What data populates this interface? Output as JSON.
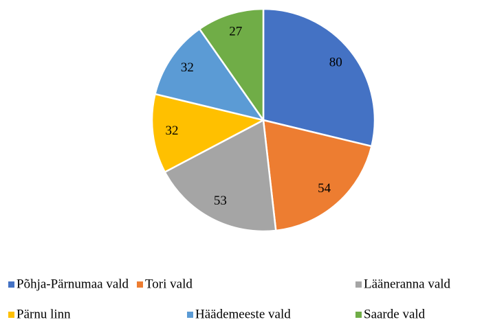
{
  "chart_data": {
    "type": "pie",
    "categories": [
      "Põhja-Pärnumaa vald",
      "Tori vald",
      "Lääneranna vald",
      "Pärnu linn",
      "Häädemeeste vald",
      "Saarde vald"
    ],
    "values": [
      80,
      54,
      53,
      32,
      32,
      27
    ],
    "colors": [
      "#4472c4",
      "#ed7d31",
      "#a5a5a5",
      "#ffc000",
      "#5b9bd5",
      "#70ad47"
    ],
    "legend": "bottom"
  }
}
